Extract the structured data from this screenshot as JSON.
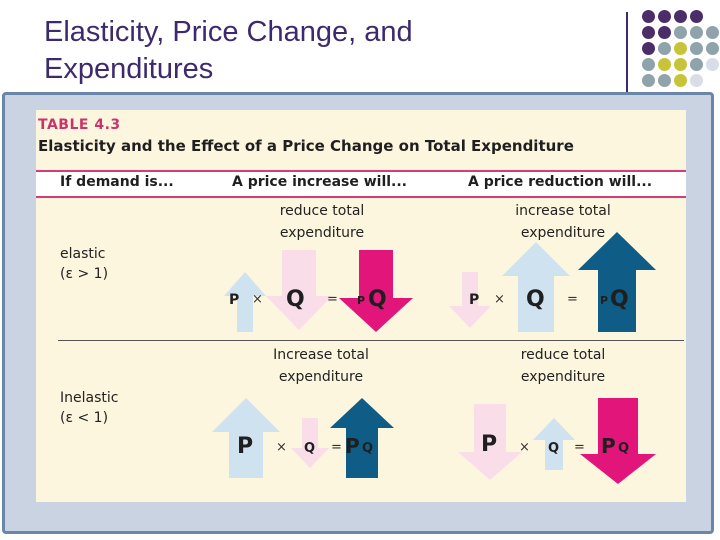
{
  "slide": {
    "title_line1": "Elasticity, Price Change, and",
    "title_line2": "Expenditures"
  },
  "table": {
    "label": "TABLE 4.3",
    "caption": "Elasticity and the Effect of a Price Change on Total Expenditure",
    "headers": [
      "If demand is...",
      "A price increase will...",
      "A price reduction will..."
    ],
    "rows": [
      {
        "label_line1": "elastic",
        "label_line2": "(ε > 1)",
        "increase": {
          "line1": "reduce total",
          "line2": "expenditure"
        },
        "reduction": {
          "line1": "increase total",
          "line2": "expenditure"
        }
      },
      {
        "label_line1": "Inelastic",
        "label_line2": "(ε < 1)",
        "increase": {
          "line1": "Increase total",
          "line2": "expenditure"
        },
        "reduction": {
          "line1": "reduce total",
          "line2": "expenditure"
        }
      }
    ],
    "symbols": {
      "p": "P",
      "q": "Q",
      "pq": "PQ",
      "times": "×",
      "equals": "="
    }
  },
  "colors": {
    "title": "#3d2a6e",
    "accent_pink": "#e2157a",
    "accent_teal": "#0f5d86",
    "pale_pink": "#f9dde9",
    "pale_blue": "#cfe2ef",
    "dot_purple": "#4b2d6a",
    "dot_gray": "#8fa3aa",
    "dot_olive": "#c7c43a"
  },
  "icons": [
    "decorative-dot-grid",
    "arrow-up-icon",
    "arrow-down-icon"
  ]
}
